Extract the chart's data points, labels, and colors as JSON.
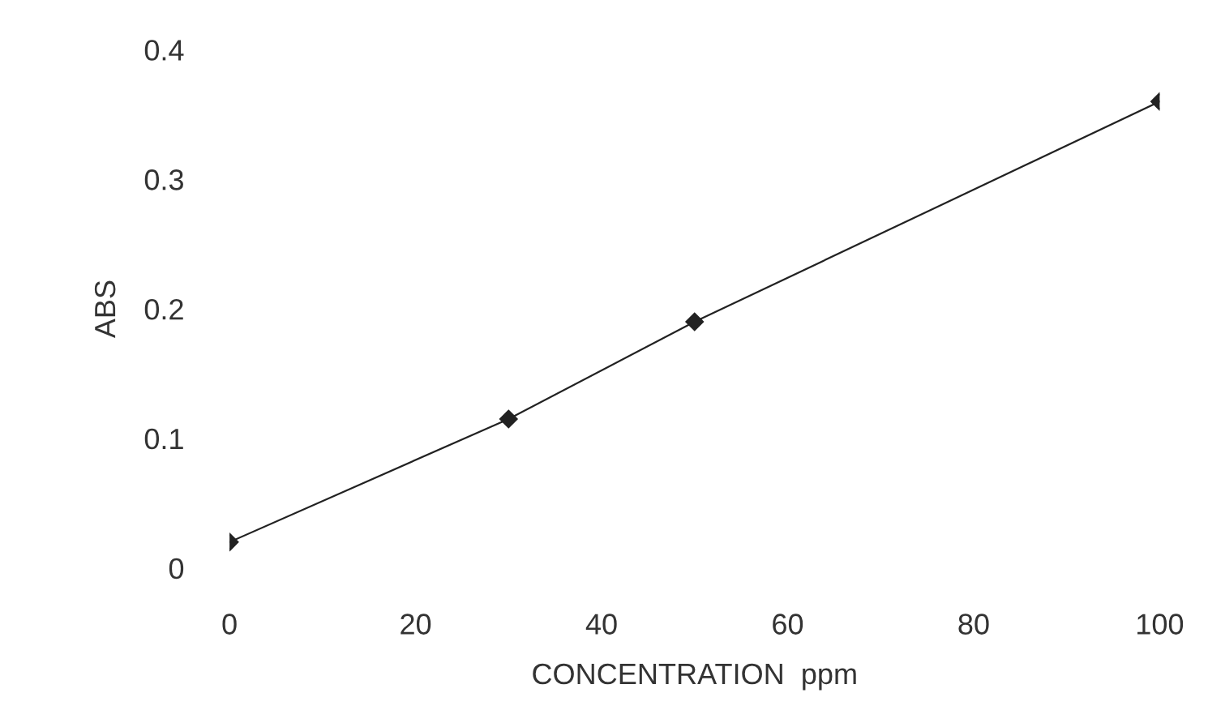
{
  "chart_data": {
    "type": "line",
    "xlabel": "CONCENTRATION  ppm",
    "ylabel": "ABS",
    "x": [
      0,
      30,
      50,
      100
    ],
    "series": [
      {
        "color": "#222222",
        "values": [
          0.02,
          0.115,
          0.19,
          0.36
        ]
      }
    ],
    "xlim": [
      0,
      100
    ],
    "ylim": [
      0,
      0.4
    ],
    "xticks": [
      0,
      20,
      40,
      60,
      80,
      100
    ],
    "yticks": [
      0,
      0.1,
      0.2,
      0.3,
      0.4
    ],
    "marker": "diamond",
    "line_style": "solid",
    "grid": false,
    "legend": false
  }
}
